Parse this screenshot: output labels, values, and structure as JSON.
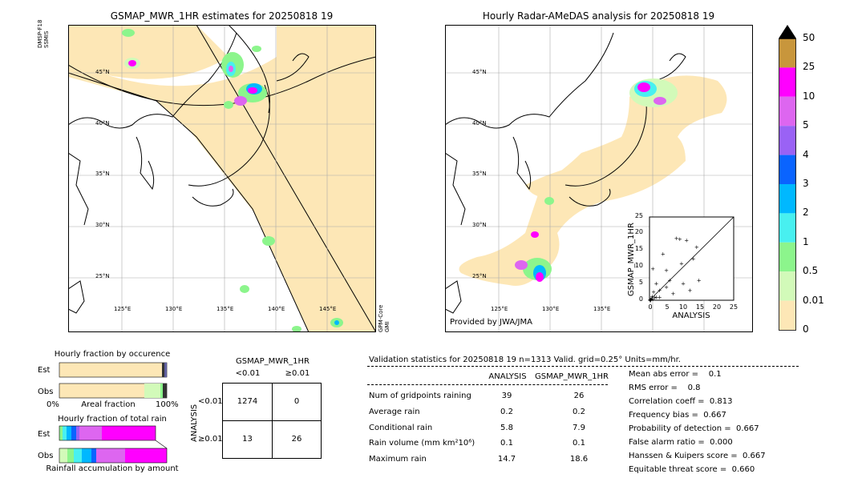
{
  "map_left": {
    "title": "GSMAP_MWR_1HR estimates for 20250818 19",
    "sat_top": "DMSP-F18\nSSMIS",
    "sat_bottom": "GPM-Core\nGMI",
    "lat_labels": [
      "45°N",
      "40°N",
      "35°N",
      "30°N",
      "25°N"
    ],
    "lon_labels": [
      "125°E",
      "130°E",
      "135°E",
      "140°E",
      "145°E"
    ]
  },
  "map_right": {
    "title": "Hourly Radar-AMeDAS analysis for 20250818 19",
    "credit": "Provided by JWA/JMA",
    "lat_labels": [
      "45°N",
      "40°N",
      "35°N",
      "30°N",
      "25°N"
    ],
    "lon_labels": [
      "125°E",
      "130°E",
      "135°E"
    ]
  },
  "scatter": {
    "xlabel": "ANALYSIS",
    "ylabel": "GSMAP_MWR_1HR",
    "ticks": [
      "0",
      "5",
      "10",
      "15",
      "20",
      "25"
    ],
    "points": [
      [
        0.3,
        0.2
      ],
      [
        0.5,
        0.5
      ],
      [
        1,
        0.4
      ],
      [
        0.8,
        1.2
      ],
      [
        1.5,
        0.8
      ],
      [
        2,
        1
      ],
      [
        0.2,
        0
      ],
      [
        0.4,
        0
      ],
      [
        0.1,
        0.3
      ],
      [
        1,
        9.5
      ],
      [
        2,
        5
      ],
      [
        3,
        3
      ],
      [
        4,
        14
      ],
      [
        5,
        9
      ],
      [
        6,
        6
      ],
      [
        7,
        2
      ],
      [
        8,
        18.6
      ],
      [
        9,
        18.4
      ],
      [
        9.5,
        11
      ],
      [
        10,
        5
      ],
      [
        11,
        18
      ],
      [
        12,
        3
      ],
      [
        13,
        12.5
      ],
      [
        14,
        16
      ],
      [
        14.7,
        6
      ],
      [
        3,
        1
      ],
      [
        5,
        4
      ],
      [
        1.2,
        2.5
      ]
    ]
  },
  "colorbar": {
    "labels": [
      "50",
      "25",
      "10",
      "5",
      "4",
      "3",
      "2",
      "1",
      "0.5",
      "0.01",
      "0"
    ],
    "colors": [
      "#c8963c",
      "#ff00ff",
      "#dd66f0",
      "#9a62f5",
      "#0a64ff",
      "#00b8ff",
      "#48f0f0",
      "#8cf58c",
      "#d2fab9",
      "#fde7b6"
    ]
  },
  "occurrence": {
    "title": "Hourly fraction by occurence",
    "rows": [
      "Est",
      "Obs"
    ],
    "axis_left": "0%",
    "axis_mid": "Areal fraction",
    "axis_right": "100%",
    "est_fraction": 0.98,
    "obs_fraction": 0.97
  },
  "total_rain": {
    "title": "Hourly fraction of total rain",
    "rows": [
      "Est",
      "Obs"
    ],
    "axis_mid": "Rainfall accumulation by amount"
  },
  "contingency": {
    "title": "GSMAP_MWR_1HR",
    "col_labels": [
      "<0.01",
      "≥0.01"
    ],
    "row_title": "ANALYSIS",
    "row_labels": [
      "<0.01",
      "≥0.01"
    ],
    "cells": [
      [
        "1274",
        "0"
      ],
      [
        "13",
        "26"
      ]
    ]
  },
  "validation": {
    "header": "Validation statistics for 20250818 19  n=1313 Valid. grid=0.25° Units=mm/hr.",
    "col_analysis": "ANALYSIS",
    "col_gsmap": "GSMAP_MWR_1HR",
    "rows": [
      {
        "label": "Num of gridpoints raining",
        "analysis": "39",
        "gsmap": "26"
      },
      {
        "label": "Average rain",
        "analysis": "0.2",
        "gsmap": "0.2"
      },
      {
        "label": "Conditional rain",
        "analysis": "5.8",
        "gsmap": "7.9"
      },
      {
        "label": "Rain volume (mm km²10⁶)",
        "analysis": "0.1",
        "gsmap": "0.1"
      },
      {
        "label": "Maximum rain",
        "analysis": "14.7",
        "gsmap": "18.6"
      }
    ],
    "scores": [
      "Mean abs error =    0.1",
      "RMS error =    0.8",
      "Correlation coeff =  0.813",
      "Frequency bias =  0.667",
      "Probability of detection =  0.667",
      "False alarm ratio =  0.000",
      "Hanssen & Kuipers score =  0.667",
      "Equitable threat score =  0.660"
    ]
  }
}
